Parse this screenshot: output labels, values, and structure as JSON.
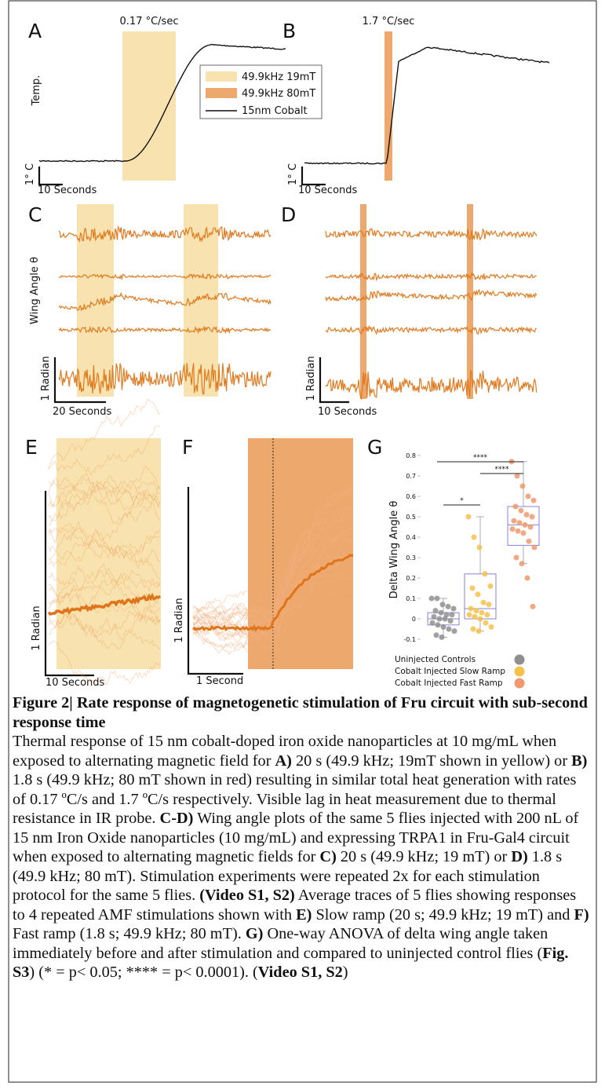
{
  "panel_a": {
    "label": "A",
    "rate": "0.17 °C/sec",
    "axis_label": "Temp.",
    "scale_y": "1° C",
    "scale_x": "10 Seconds",
    "legend": [
      "49.9kHz 19mT",
      "49.9kHz 80mT",
      "15nm Cobalt"
    ]
  },
  "panel_b": {
    "label": "B",
    "rate": "1.7 °C/sec",
    "scale_y": "1° C",
    "scale_x": "10 Seconds"
  },
  "panel_c": {
    "label": "C",
    "axis_label": "Wing Angle θ",
    "scale_y": "1 Radian",
    "scale_x": "20 Seconds"
  },
  "panel_d": {
    "label": "D",
    "scale_y": "1 Radian",
    "scale_x": "10 Seconds"
  },
  "panel_e": {
    "label": "E",
    "scale_y": "1 Radian",
    "scale_x": "10 Seconds"
  },
  "panel_f": {
    "label": "F",
    "scale_y": "1 Radian",
    "scale_x": "1 Second"
  },
  "panel_g": {
    "label": "G",
    "y_label": "Delta Wing Angle θ",
    "ylim": [
      -0.1,
      0.8
    ],
    "yticks": [
      0.8,
      0.7,
      0.6,
      0.5,
      0.4,
      0.3,
      0.2,
      0.1,
      0,
      -0.1
    ],
    "significance": [
      "****",
      "****",
      "*"
    ],
    "groups": [
      {
        "name": "Uninjected Controls",
        "color": "#8f8f8f",
        "label_color": "#6e6e6e",
        "points": [
          0.1,
          0.1,
          0.07,
          0.06,
          0.05,
          0.04,
          0.03,
          0.02,
          0.02,
          0.01,
          0,
          0,
          -0.01,
          -0.02,
          -0.03,
          -0.04,
          -0.05,
          -0.06,
          -0.08,
          -0.09
        ],
        "box": {
          "whisker_low": -0.09,
          "q1": -0.03,
          "median": 0,
          "q3": 0.03,
          "whisker_high": 0.1
        }
      },
      {
        "name": "Cobalt Injected Slow Ramp",
        "color": "#f5c24a",
        "label_color": "#e8a020",
        "points": [
          0.5,
          0.4,
          0.35,
          0.22,
          0.16,
          0.15,
          0.12,
          0.08,
          0.07,
          0.05,
          0.04,
          0.03,
          0.02,
          0.02,
          0.01,
          0,
          -0.02,
          -0.04,
          -0.05,
          -0.06
        ],
        "box": {
          "whisker_low": -0.06,
          "q1": 0,
          "median": 0.05,
          "q3": 0.22,
          "whisker_high": 0.5
        }
      },
      {
        "name": "Cobalt Injected Fast Ramp",
        "color": "#ef9a6e",
        "label_color": "#e0603a",
        "points": [
          0.77,
          0.7,
          0.65,
          0.6,
          0.58,
          0.55,
          0.53,
          0.51,
          0.5,
          0.48,
          0.47,
          0.46,
          0.45,
          0.44,
          0.43,
          0.42,
          0.38,
          0.35,
          0.3,
          0.27,
          0.2,
          0.06
        ],
        "box": {
          "whisker_low": 0.27,
          "q1": 0.36,
          "median": 0.46,
          "q3": 0.55,
          "whisker_high": 0.77
        }
      }
    ]
  },
  "caption": {
    "title": "Figure 2|  Rate response of magnetogenetic stimulation of Fru circuit with sub-second response time",
    "segments": [
      {
        "text": "Thermal response of 15 nm cobalt-doped iron oxide nanoparticles at 10 mg/mL when exposed to alternating magnetic field for ",
        "bold": false
      },
      {
        "text": "A)",
        "bold": true
      },
      {
        "text": " 20 s (49.9 kHz; 19mT shown in yellow) or ",
        "bold": false
      },
      {
        "text": "B)",
        "bold": true
      },
      {
        "text": " 1.8 s (49.9 kHz; 80 mT shown in red) resulting in similar total heat generation with rates of 0.17 ºC/s and 1.7 ºC/s respectively. Visible lag in heat measurement due to thermal resistance in IR probe. ",
        "bold": false
      },
      {
        "text": "C-D)",
        "bold": true
      },
      {
        "text": " Wing angle plots of the same 5 flies injected with 200 nL of 15 nm Iron Oxide nanoparticles (10 mg/mL) and expressing TRPA1 in Fru-Gal4 circuit when exposed to alternating magnetic fields for ",
        "bold": false
      },
      {
        "text": "C)",
        "bold": true
      },
      {
        "text": " 20 s (49.9 kHz; 19 mT) or ",
        "bold": false
      },
      {
        "text": "D)",
        "bold": true
      },
      {
        "text": " 1.8 s (49.9 kHz; 80 mT). Stimulation experiments were repeated 2x for each stimulation protocol for the same 5 flies. ",
        "bold": false
      },
      {
        "text": "(Video S1, S2)",
        "bold": true
      },
      {
        "text": " Average traces of 5 flies showing responses to 4 repeated AMF stimulations shown with ",
        "bold": false
      },
      {
        "text": "E)",
        "bold": true
      },
      {
        "text": " Slow ramp (20 s; 49.9 kHz; 19 mT) and ",
        "bold": false
      },
      {
        "text": "F)",
        "bold": true
      },
      {
        "text": " Fast ramp (1.8 s; 49.9 kHz; 80 mT). ",
        "bold": false
      },
      {
        "text": "G)",
        "bold": true
      },
      {
        "text": " One-way ANOVA of delta wing angle taken immediately before and after stimulation and compared to uninjected control flies (",
        "bold": false
      },
      {
        "text": "Fig. S3",
        "bold": true
      },
      {
        "text": ") (* = p< 0.05; **** = p< 0.0001). (",
        "bold": false
      },
      {
        "text": "Video S1, S2",
        "bold": true
      },
      {
        "text": ")",
        "bold": false
      }
    ]
  }
}
